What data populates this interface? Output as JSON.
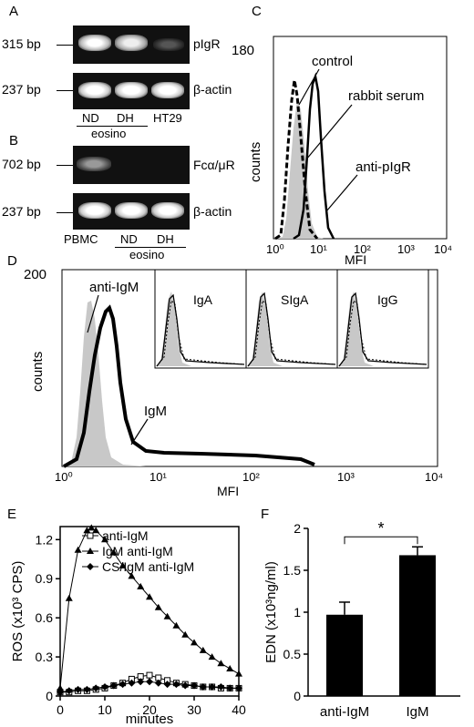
{
  "panelA": {
    "letter": "A",
    "bp_top": "315 bp",
    "bp_bottom": "237 bp",
    "gene_top": "pIgR",
    "gene_bottom": "β-actin",
    "lanes": [
      "ND",
      "DH",
      "HT29"
    ],
    "group_label": "eosino"
  },
  "panelB": {
    "letter": "B",
    "bp_top": "702 bp",
    "bp_bottom": "237 bp",
    "gene_top": "Fcα/μR",
    "gene_bottom": "β-actin",
    "lanes": [
      "PBMC",
      "ND",
      "DH"
    ],
    "group_label": "eosino"
  },
  "panelC": {
    "letter": "C",
    "y_max_label": "180",
    "ylabel": "counts",
    "xlabel": "MFI",
    "x_ticks": [
      "10⁰",
      "10¹",
      "10²",
      "10³",
      "10⁴"
    ],
    "annotations": [
      "control",
      "rabbit serum",
      "anti-pIgR"
    ]
  },
  "panelD": {
    "letter": "D",
    "y_max_label": "200",
    "ylabel": "counts",
    "xlabel": "MFI",
    "x_ticks": [
      "10⁰",
      "10¹",
      "10²",
      "10³",
      "10⁴"
    ],
    "annotations": [
      "anti-IgM",
      "IgM"
    ],
    "insets": [
      "IgA",
      "SIgA",
      "IgG"
    ]
  },
  "panelE": {
    "letter": "E",
    "chart_data": {
      "type": "line",
      "xlabel": "minutes",
      "ylabel": "ROS (x10³ CPS)",
      "xlim": [
        0,
        40
      ],
      "ylim": [
        0,
        1.3
      ],
      "x_ticks": [
        "0",
        "10",
        "20",
        "30",
        "40"
      ],
      "y_ticks": [
        "0",
        "0.3",
        "0.6",
        "0.9",
        "1.2"
      ],
      "series": [
        {
          "name": "anti-IgM",
          "marker": "open-square",
          "x": [
            0,
            2,
            4,
            6,
            8,
            10,
            12,
            14,
            16,
            18,
            20,
            22,
            24,
            26,
            28,
            30,
            32,
            34,
            36,
            38,
            40
          ],
          "y": [
            0.03,
            0.03,
            0.04,
            0.04,
            0.05,
            0.06,
            0.08,
            0.1,
            0.13,
            0.15,
            0.16,
            0.14,
            0.12,
            0.1,
            0.09,
            0.08,
            0.07,
            0.07,
            0.06,
            0.06,
            0.06
          ]
        },
        {
          "name": "IgM anti-IgM",
          "marker": "filled-triangle",
          "x": [
            0,
            2,
            4,
            6,
            7,
            8,
            10,
            12,
            14,
            16,
            18,
            20,
            22,
            24,
            26,
            28,
            30,
            32,
            34,
            36,
            38,
            40
          ],
          "y": [
            0.06,
            0.75,
            1.12,
            1.27,
            1.29,
            1.27,
            1.2,
            1.1,
            1.0,
            0.92,
            0.84,
            0.76,
            0.68,
            0.61,
            0.54,
            0.47,
            0.41,
            0.35,
            0.3,
            0.25,
            0.21,
            0.17
          ]
        },
        {
          "name": "CS/IgM anti-IgM",
          "marker": "filled-diamond",
          "x": [
            0,
            2,
            4,
            6,
            8,
            10,
            12,
            14,
            16,
            18,
            20,
            22,
            24,
            26,
            28,
            30,
            32,
            34,
            36,
            38,
            40
          ],
          "y": [
            0.03,
            0.04,
            0.05,
            0.05,
            0.06,
            0.07,
            0.08,
            0.09,
            0.1,
            0.11,
            0.11,
            0.1,
            0.09,
            0.09,
            0.08,
            0.08,
            0.07,
            0.07,
            0.07,
            0.06,
            0.06
          ]
        }
      ]
    }
  },
  "panelF": {
    "letter": "F",
    "chart_data": {
      "type": "bar",
      "categories": [
        "anti-IgM",
        "IgM"
      ],
      "values": [
        0.97,
        1.68
      ],
      "errors": [
        0.15,
        0.1
      ],
      "ylabel": "EDN (x10³ng/ml)",
      "ylim": [
        0,
        2
      ],
      "y_ticks": [
        "0",
        "0.5",
        "1",
        "1.5",
        "2"
      ],
      "significance": "*"
    }
  }
}
